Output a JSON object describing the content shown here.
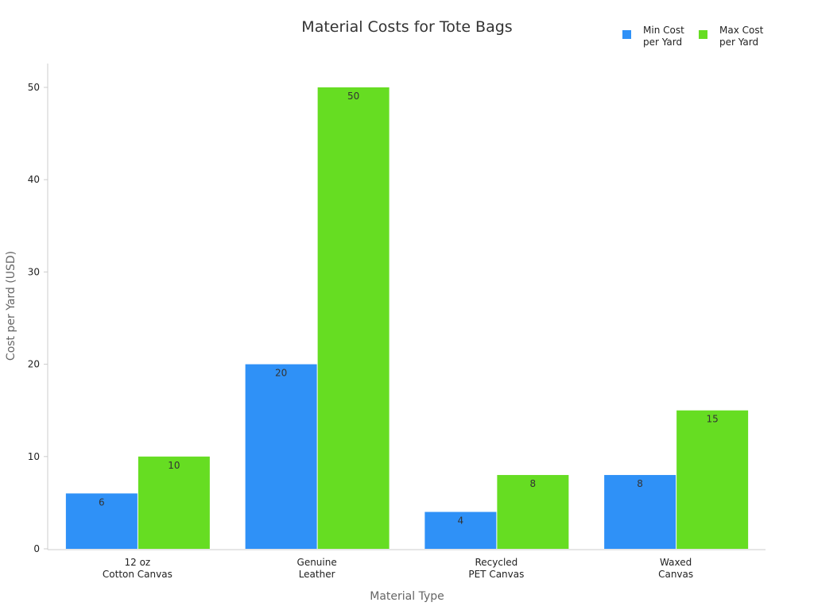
{
  "chart_data": {
    "type": "bar",
    "title": "Material Costs for Tote Bags",
    "xlabel": "Material Type",
    "ylabel": "Cost per Yard (USD)",
    "categories": [
      [
        "12 oz",
        "Cotton Canvas"
      ],
      [
        "Genuine",
        "Leather"
      ],
      [
        "Recycled",
        "PET Canvas"
      ],
      [
        "Waxed",
        "Canvas"
      ]
    ],
    "series": [
      {
        "name": [
          "Min Cost",
          "per Yard"
        ],
        "color": "#2f91f7",
        "values": [
          6,
          20,
          4,
          8
        ]
      },
      {
        "name": [
          "Max Cost",
          "per Yard"
        ],
        "color": "#66dd22",
        "values": [
          10,
          50,
          8,
          15
        ]
      }
    ],
    "ylim": [
      0,
      52.5
    ],
    "yticks": [
      0,
      10,
      20,
      30,
      40,
      50
    ],
    "grid": false,
    "legend": "top-right"
  }
}
